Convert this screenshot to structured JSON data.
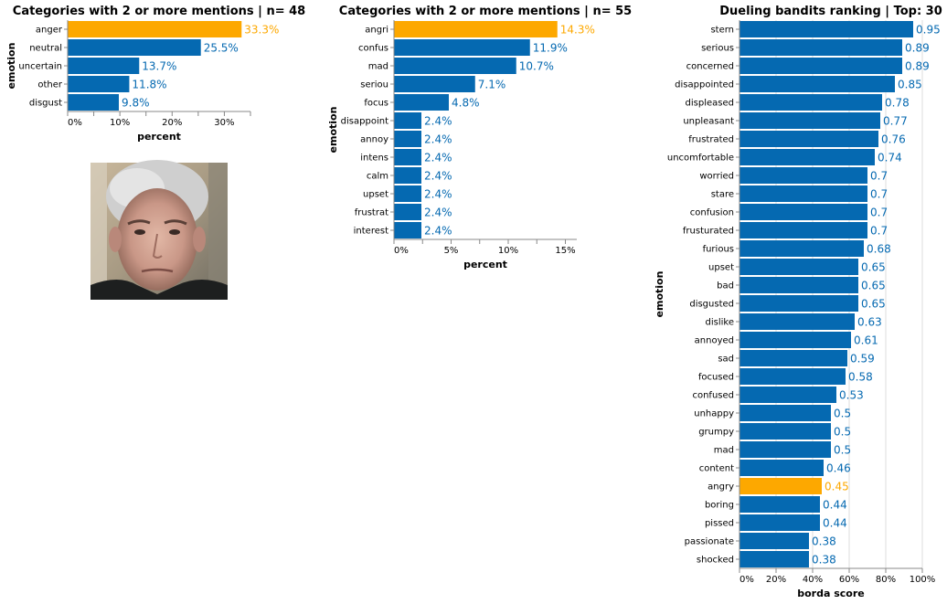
{
  "colors": {
    "bar": "#0569b1",
    "highlight": "#fda800",
    "axis": "#888888",
    "grid": "#dddddd",
    "text": "#000000"
  },
  "photo": {
    "alt": "face photo of a man with a stern expression"
  },
  "chart_data": [
    {
      "type": "bar",
      "orientation": "horizontal",
      "title": "Categories with 2 or more mentions | n= 48",
      "xlabel": "percent",
      "ylabel": "emotion",
      "xlim": [
        0,
        35
      ],
      "ticks": [
        0,
        10,
        20,
        30
      ],
      "tick_labels": [
        "0%",
        "10%",
        "20%",
        "30%"
      ],
      "grid": false,
      "categories": [
        "anger",
        "neutral",
        "uncertain",
        "other",
        "disgust"
      ],
      "values": [
        33.3,
        25.5,
        13.7,
        11.8,
        9.8
      ],
      "value_labels": [
        "33.3%",
        "25.5%",
        "13.7%",
        "11.8%",
        "9.8%"
      ],
      "highlight": [
        "anger"
      ]
    },
    {
      "type": "bar",
      "orientation": "horizontal",
      "title": "Categories with 2 or more mentions | n= 55",
      "xlabel": "percent",
      "ylabel": "emotion",
      "xlim": [
        0,
        16
      ],
      "ticks": [
        0,
        5,
        10,
        15
      ],
      "tick_labels": [
        "0%",
        "5%",
        "10%",
        "15%"
      ],
      "grid": false,
      "categories": [
        "angri",
        "confus",
        "mad",
        "seriou",
        "focus",
        "disappoint",
        "annoy",
        "intens",
        "calm",
        "upset",
        "frustrat",
        "interest"
      ],
      "values": [
        14.3,
        11.9,
        10.7,
        7.1,
        4.8,
        2.4,
        2.4,
        2.4,
        2.4,
        2.4,
        2.4,
        2.4
      ],
      "value_labels": [
        "14.3%",
        "11.9%",
        "10.7%",
        "7.1%",
        "4.8%",
        "2.4%",
        "2.4%",
        "2.4%",
        "2.4%",
        "2.4%",
        "2.4%",
        "2.4%"
      ],
      "highlight": [
        "angri"
      ]
    },
    {
      "type": "bar",
      "orientation": "horizontal",
      "title": "Dueling bandits ranking | Top: 30",
      "xlabel": "borda score",
      "ylabel": "emotion",
      "xlim": [
        0,
        1.0
      ],
      "ticks": [
        0,
        0.2,
        0.4,
        0.6,
        0.8,
        1.0
      ],
      "tick_labels": [
        "0%",
        "20%",
        "40%",
        "60%",
        "80%",
        "100%"
      ],
      "grid": true,
      "categories": [
        "stern",
        "serious",
        "concerned",
        "disappointed",
        "displeased",
        "unpleasant",
        "frustrated",
        "uncomfortable",
        "worried",
        "stare",
        "confusion",
        "frusturated",
        "furious",
        "upset",
        "bad",
        "disgusted",
        "dislike",
        "annoyed",
        "sad",
        "focused",
        "confused",
        "unhappy",
        "grumpy",
        "mad",
        "content",
        "angry",
        "boring",
        "pissed",
        "passionate",
        "shocked"
      ],
      "values": [
        0.95,
        0.89,
        0.89,
        0.85,
        0.78,
        0.77,
        0.76,
        0.74,
        0.7,
        0.7,
        0.7,
        0.7,
        0.68,
        0.65,
        0.65,
        0.65,
        0.63,
        0.61,
        0.59,
        0.58,
        0.53,
        0.5,
        0.5,
        0.5,
        0.46,
        0.45,
        0.44,
        0.44,
        0.38,
        0.38
      ],
      "value_labels": [
        "0.95",
        "0.89",
        "0.89",
        "0.85",
        "0.78",
        "0.77",
        "0.76",
        "0.74",
        "0.7",
        "0.7",
        "0.7",
        "0.7",
        "0.68",
        "0.65",
        "0.65",
        "0.65",
        "0.63",
        "0.61",
        "0.59",
        "0.58",
        "0.53",
        "0.5",
        "0.5",
        "0.5",
        "0.46",
        "0.45",
        "0.44",
        "0.44",
        "0.38",
        "0.38"
      ],
      "highlight": [
        "angry"
      ]
    }
  ]
}
